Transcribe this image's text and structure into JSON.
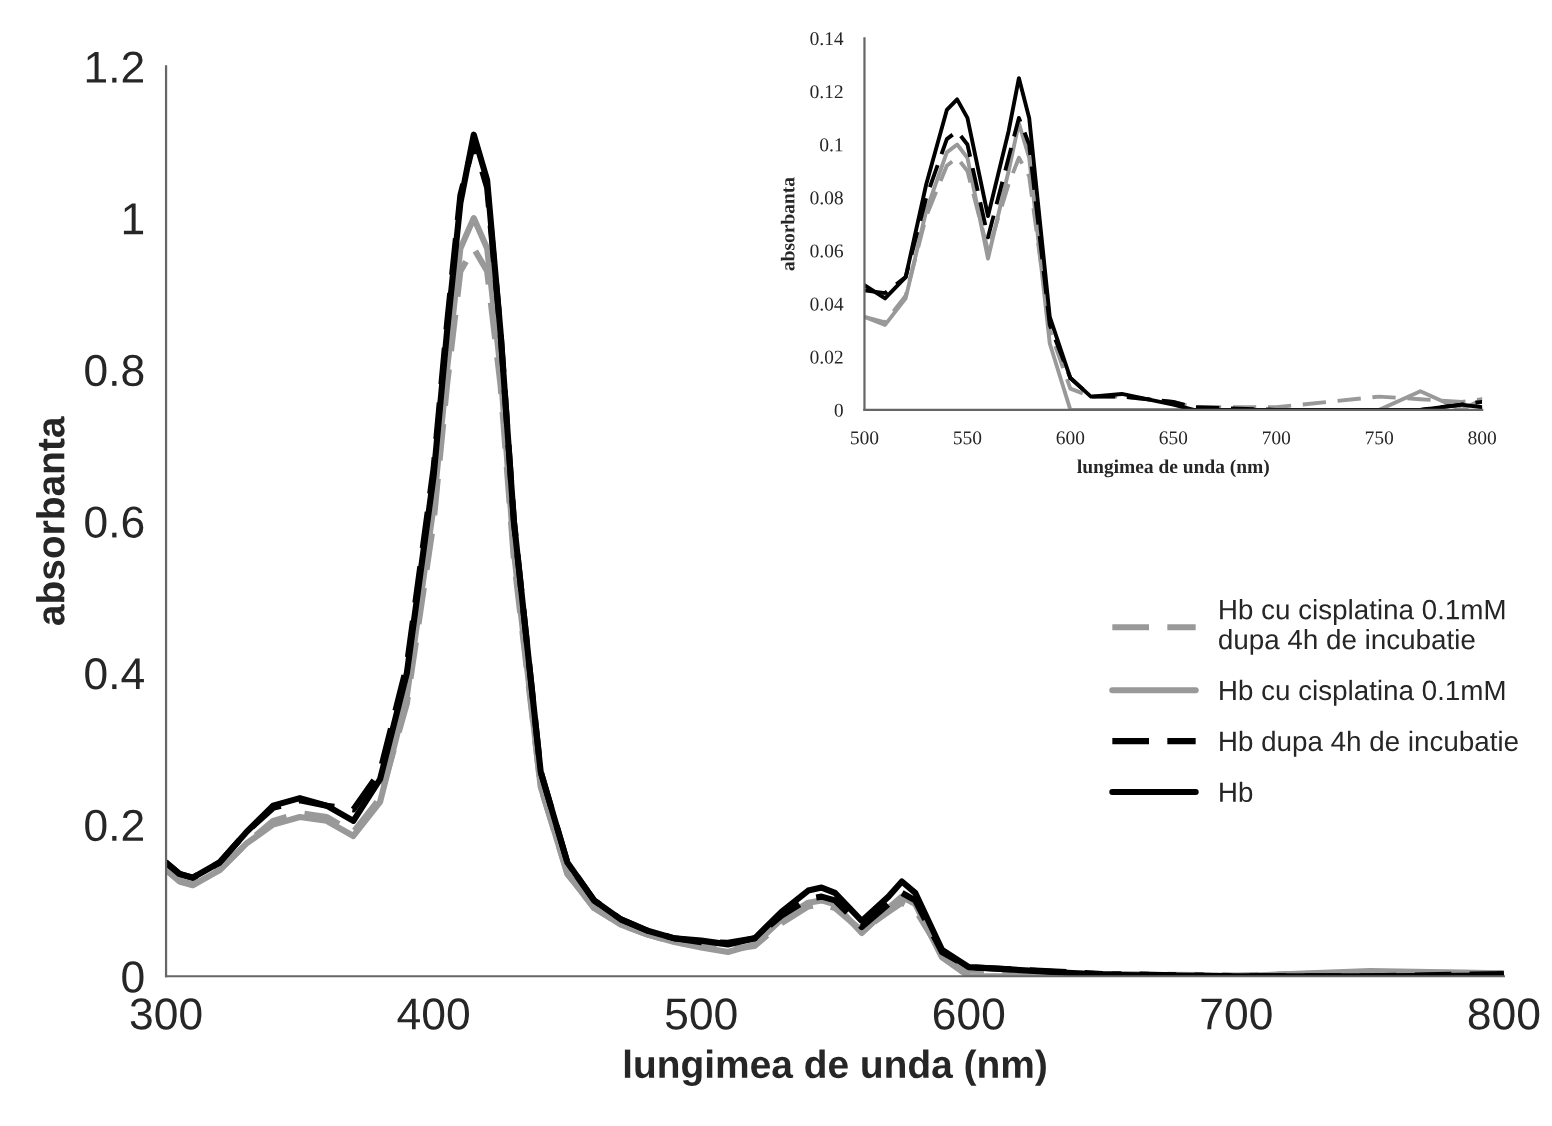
{
  "chart_data": [
    {
      "type": "line",
      "xlabel": "lungimea de unda (nm)",
      "ylabel": "absorbanta",
      "xlim": [
        300,
        800
      ],
      "xticks": [
        300,
        400,
        500,
        600,
        700,
        800
      ],
      "ylim": [
        0,
        1.2
      ],
      "yticks": [
        0,
        0.2,
        0.4,
        0.6,
        0.8,
        1,
        1.2
      ],
      "grid": false,
      "legend": "right",
      "x": [
        300,
        305,
        310,
        320,
        330,
        340,
        350,
        360,
        370,
        380,
        390,
        400,
        405,
        410,
        415,
        420,
        425,
        430,
        440,
        450,
        460,
        470,
        480,
        490,
        500,
        510,
        520,
        530,
        540,
        545,
        550,
        560,
        570,
        575,
        580,
        590,
        600,
        650,
        700,
        750,
        800
      ],
      "series": [
        {
          "name": "Hb cu cisplatina 0.1mM\ndupa 4h de incubatie",
          "color": "#999999",
          "line_style": "dashed",
          "values": [
            0.14,
            0.128,
            0.123,
            0.14,
            0.175,
            0.205,
            0.215,
            0.21,
            0.19,
            0.235,
            0.36,
            0.6,
            0.78,
            0.93,
            0.96,
            0.93,
            0.78,
            0.55,
            0.25,
            0.135,
            0.09,
            0.068,
            0.055,
            0.045,
            0.04,
            0.035,
            0.04,
            0.07,
            0.092,
            0.095,
            0.09,
            0.06,
            0.085,
            0.097,
            0.088,
            0.03,
            0.008,
            0.003,
            0.001,
            0.005,
            0.004
          ]
        },
        {
          "name": "Hb cu cisplatina 0.1mM",
          "color": "#999999",
          "line_style": "solid",
          "values": [
            0.14,
            0.125,
            0.12,
            0.14,
            0.175,
            0.2,
            0.21,
            0.205,
            0.185,
            0.23,
            0.37,
            0.62,
            0.8,
            0.96,
            1.0,
            0.96,
            0.8,
            0.56,
            0.25,
            0.135,
            0.09,
            0.068,
            0.055,
            0.045,
            0.038,
            0.032,
            0.042,
            0.075,
            0.097,
            0.1,
            0.095,
            0.057,
            0.09,
            0.105,
            0.095,
            0.025,
            0.0,
            0.0,
            0.0,
            0.007,
            0.004
          ]
        },
        {
          "name": "Hb dupa 4h de incubatie",
          "color": "#000000",
          "line_style": "dashed",
          "values": [
            0.15,
            0.135,
            0.13,
            0.15,
            0.19,
            0.222,
            0.232,
            0.225,
            0.22,
            0.27,
            0.41,
            0.67,
            0.86,
            1.03,
            1.1,
            1.04,
            0.85,
            0.6,
            0.27,
            0.15,
            0.1,
            0.075,
            0.06,
            0.05,
            0.045,
            0.044,
            0.05,
            0.08,
            0.102,
            0.105,
            0.1,
            0.065,
            0.095,
            0.11,
            0.1,
            0.032,
            0.012,
            0.003,
            0.0,
            0.0,
            0.003
          ]
        },
        {
          "name": "Hb",
          "color": "#000000",
          "line_style": "solid",
          "values": [
            0.15,
            0.135,
            0.13,
            0.15,
            0.19,
            0.225,
            0.235,
            0.225,
            0.205,
            0.26,
            0.4,
            0.66,
            0.85,
            1.02,
            1.11,
            1.05,
            0.85,
            0.6,
            0.27,
            0.15,
            0.1,
            0.075,
            0.06,
            0.05,
            0.047,
            0.042,
            0.05,
            0.085,
            0.113,
            0.117,
            0.11,
            0.073,
            0.105,
            0.125,
            0.11,
            0.035,
            0.012,
            0.002,
            0.0,
            0.0,
            0.001
          ]
        }
      ]
    },
    {
      "type": "line",
      "xlabel": "lungimea de unda (nm)",
      "ylabel": "absorbanta",
      "xlim": [
        500,
        800
      ],
      "xticks": [
        500,
        550,
        600,
        650,
        700,
        750,
        800
      ],
      "ylim": [
        0,
        0.14
      ],
      "yticks": [
        0,
        0.02,
        0.04,
        0.06,
        0.08,
        0.1,
        0.12,
        0.14
      ],
      "grid": false,
      "legend": false,
      "x": [
        500,
        510,
        520,
        530,
        540,
        545,
        550,
        560,
        570,
        575,
        580,
        590,
        600,
        610,
        625,
        650,
        660,
        700,
        750,
        770,
        790,
        800
      ],
      "series": [
        {
          "color": "#999999",
          "line_style": "dashed",
          "values": [
            0.035,
            0.033,
            0.043,
            0.073,
            0.092,
            0.095,
            0.09,
            0.06,
            0.085,
            0.095,
            0.088,
            0.03,
            0.008,
            0.005,
            0.005,
            0.003,
            0.001,
            0.001,
            0.005,
            0.004,
            0.003,
            0.004
          ]
        },
        {
          "color": "#999999",
          "line_style": "solid",
          "values": [
            0.035,
            0.032,
            0.042,
            0.075,
            0.097,
            0.1,
            0.095,
            0.057,
            0.09,
            0.108,
            0.095,
            0.025,
            0.0,
            0.0,
            0.0,
            0.0,
            0.0,
            0.0,
            0.0,
            0.007,
            0.0,
            0.004
          ]
        },
        {
          "color": "#000000",
          "line_style": "dashed",
          "values": [
            0.045,
            0.044,
            0.05,
            0.08,
            0.102,
            0.105,
            0.1,
            0.065,
            0.095,
            0.11,
            0.1,
            0.032,
            0.012,
            0.005,
            0.005,
            0.003,
            0.001,
            0.0,
            0.0,
            0.0,
            0.002,
            0.003
          ]
        },
        {
          "color": "#000000",
          "line_style": "solid",
          "values": [
            0.047,
            0.042,
            0.05,
            0.085,
            0.113,
            0.117,
            0.11,
            0.073,
            0.105,
            0.125,
            0.11,
            0.035,
            0.012,
            0.005,
            0.006,
            0.002,
            0.0,
            0.0,
            0.0,
            0.0,
            0.002,
            0.001
          ]
        }
      ]
    }
  ]
}
